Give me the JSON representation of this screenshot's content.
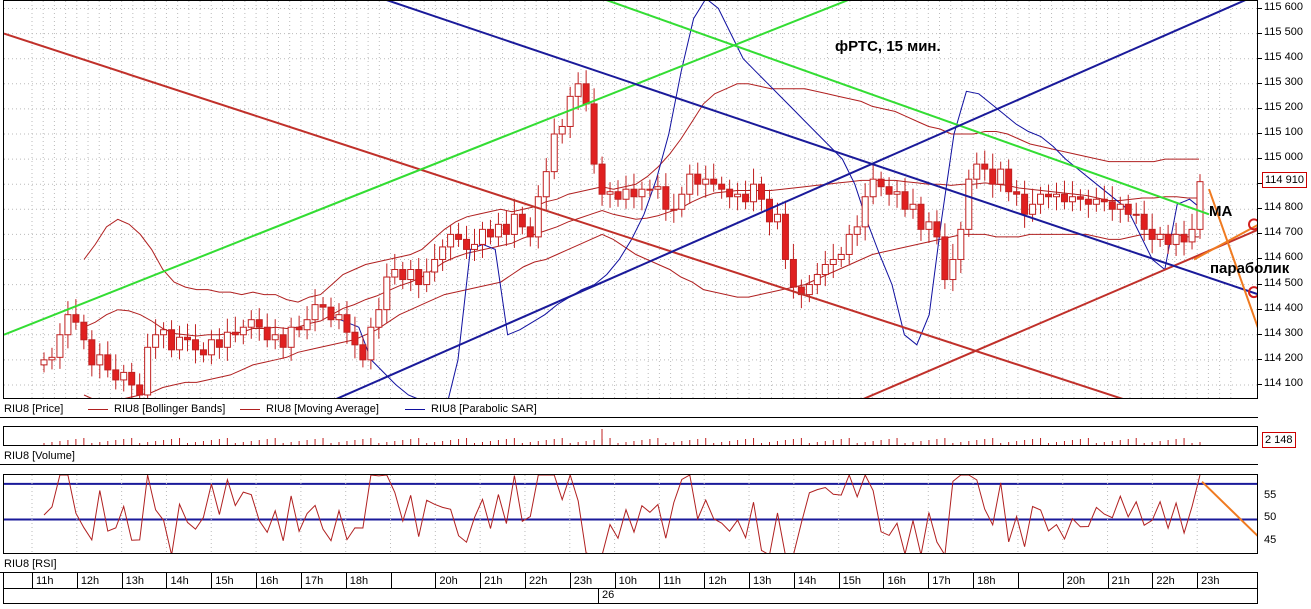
{
  "chart_data": [
    {
      "type": "candlestick",
      "title": "фРТС, 15 мин.",
      "symbol": "RIU8",
      "legend": [
        "RIU8 [Price]",
        "RIU8 [Bollinger Bands]",
        "RIU8 [Moving Average]",
        "RIU8 [Parabolic SAR]"
      ],
      "y_ticks": [
        115600,
        115500,
        115400,
        115300,
        115200,
        115100,
        115000,
        114900,
        114800,
        114700,
        114600,
        114500,
        114400,
        114300,
        114200,
        114100
      ],
      "y_tick_labels": [
        "115 600",
        "115 500",
        "115 400",
        "115 300",
        "115 200",
        "115 100",
        "115 000",
        "114 900",
        "114 800",
        "114 700",
        "114 600",
        "114 500",
        "114 400",
        "114 300",
        "114 200",
        "114 100"
      ],
      "ylim": [
        114040,
        115630
      ],
      "last_price_label": "114 910",
      "annotations": [
        "MA",
        "параболик"
      ],
      "candles_close": [
        114200,
        114210,
        114300,
        114380,
        114350,
        114280,
        114180,
        114220,
        114160,
        114120,
        114150,
        114100,
        114060,
        114250,
        114300,
        114320,
        114240,
        114290,
        114280,
        114240,
        114220,
        114280,
        114250,
        114310,
        114300,
        114330,
        114360,
        114330,
        114280,
        114300,
        114250,
        114330,
        114320,
        114360,
        114420,
        114410,
        114360,
        114380,
        114310,
        114260,
        114200,
        114330,
        114400,
        114530,
        114560,
        114520,
        114560,
        114500,
        114550,
        114600,
        114650,
        114700,
        114680,
        114640,
        114660,
        114720,
        114690,
        114740,
        114700,
        114780,
        114730,
        114690,
        114850,
        114950,
        115100,
        115130,
        115250,
        115300,
        115220,
        114980,
        114860,
        114870,
        114840,
        114880,
        114850,
        114880,
        114880,
        114890,
        114800,
        114800,
        114860,
        114940,
        114900,
        114920,
        114900,
        114880,
        114850,
        114860,
        114830,
        114900,
        114840,
        114750,
        114780,
        114600,
        114490,
        114460,
        114500,
        114540,
        114580,
        114600,
        114620,
        114700,
        114730,
        114850,
        114920,
        114890,
        114860,
        114870,
        114800,
        114820,
        114720,
        114750,
        114690,
        114520,
        114600,
        114720,
        114920,
        114980,
        114960,
        114900,
        114960,
        114870,
        114860,
        114780,
        114820,
        114860,
        114850,
        114860,
        114830,
        114850,
        114840,
        114820,
        114840,
        114830,
        114800,
        114820,
        114780,
        114780,
        114720,
        114680,
        114700,
        114660,
        114700,
        114670,
        114720,
        114910
      ],
      "bb_upper": [
        114600,
        114660,
        114730,
        114760,
        114740,
        114700,
        114640,
        114560,
        114510,
        114490,
        114480,
        114480,
        114470,
        114470,
        114460,
        114470,
        114460,
        114460,
        114440,
        114430,
        114450,
        114460,
        114500,
        114540,
        114560,
        114580,
        114590,
        114600,
        114610,
        114620,
        114640,
        114680,
        114720,
        114750,
        114770,
        114780,
        114790,
        114800,
        114790,
        114800,
        114810,
        114830,
        114840,
        114860,
        114870,
        114880,
        114890,
        114880,
        114890,
        114900,
        114930,
        114970,
        115020,
        115080,
        115150,
        115220,
        115260,
        115280,
        115300,
        115300,
        115290,
        115280,
        115280,
        115280,
        115280,
        115270,
        115260,
        115250,
        115240,
        115230,
        115210,
        115200,
        115190,
        115170,
        115150,
        115130,
        115120,
        115100,
        115100,
        115100,
        115110,
        115110,
        115100,
        115080,
        115060,
        115050,
        115040,
        115030,
        115020,
        115010,
        115000,
        114990,
        114990,
        114990,
        114990,
        114990,
        115000,
        115000,
        115000,
        115000
      ],
      "bb_lower": [
        114060,
        114040,
        114030,
        114040,
        114050,
        114060,
        114070,
        114090,
        114100,
        114110,
        114110,
        114120,
        114130,
        114140,
        114160,
        114180,
        114190,
        114200,
        114210,
        114230,
        114240,
        114250,
        114260,
        114270,
        114280,
        114300,
        114320,
        114350,
        114380,
        114400,
        114420,
        114440,
        114460,
        114470,
        114480,
        114490,
        114500,
        114510,
        114540,
        114570,
        114590,
        114600,
        114620,
        114640,
        114660,
        114680,
        114700,
        114680,
        114650,
        114620,
        114600,
        114580,
        114560,
        114530,
        114510,
        114480,
        114470,
        114460,
        114450,
        114450,
        114460,
        114470,
        114480,
        114490,
        114500,
        114520,
        114540,
        114560,
        114580,
        114600,
        114620,
        114630,
        114640,
        114650,
        114660,
        114670,
        114680,
        114690,
        114700,
        114700,
        114700,
        114690,
        114690,
        114690,
        114700,
        114700,
        114700,
        114700,
        114700,
        114700,
        114690,
        114680,
        114680,
        114690,
        114700,
        114700,
        114700,
        114700,
        114690,
        114690
      ],
      "sar": [
        114370,
        114350,
        114330,
        114200,
        114150,
        114100,
        114060,
        114040,
        114020,
        114000,
        114200,
        114640,
        114660,
        114640,
        114300,
        114320,
        114350,
        114380,
        114420,
        114450,
        114480,
        114500,
        114540,
        114600,
        114680,
        114780,
        114920,
        115100,
        115350,
        115560,
        115640,
        115600,
        115500,
        115400,
        115350,
        115300,
        115250,
        115200,
        115150,
        115100,
        115050,
        115000,
        114900,
        114750,
        114620,
        114500,
        114300,
        114260,
        114380,
        114760,
        115100,
        115270,
        115260,
        115220,
        115180,
        115140,
        115110,
        115090,
        115050,
        115000,
        114960,
        114920,
        114880,
        114840,
        114800,
        114700,
        114600,
        114560,
        114820,
        114840,
        114800
      ],
      "main_lines": [
        {
          "name": "red-channel-upper",
          "from": [
            "10h",
            115500
          ],
          "to": [
            "0h",
            114000
          ],
          "color": "#c0302a"
        },
        {
          "name": "red-channel-lower",
          "from": [
            "17h",
            114040
          ],
          "to": [
            "0h",
            114720
          ],
          "color": "#c0302a"
        },
        {
          "name": "green-support",
          "from": [
            "10h",
            114300
          ],
          "to": [
            "23h",
            115600
          ],
          "color": "#33dd33"
        },
        {
          "name": "green-resistance",
          "from": [
            "10h",
            115600
          ],
          "to": [
            "0h",
            114780
          ],
          "color": "#33dd33"
        },
        {
          "name": "blue-trend-up",
          "from": [
            "18h",
            114100
          ],
          "to": [
            "0h",
            115600
          ],
          "color": "#1a1a9a"
        },
        {
          "name": "blue-trend-down",
          "from": [
            "21h",
            115620
          ],
          "to": [
            "0h",
            114480
          ],
          "color": "#1a1a9a"
        }
      ]
    },
    {
      "type": "bar",
      "title": "RIU8 [Volume]",
      "last_value_label": "2 148"
    },
    {
      "type": "line",
      "title": "RIU8 [RSI]",
      "y_tick_labels": [
        "55",
        "50",
        "45"
      ],
      "levels": [
        58,
        50
      ],
      "ylim": [
        42,
        60
      ]
    }
  ],
  "time_axis": {
    "hours": [
      "11h",
      "12h",
      "13h",
      "14h",
      "15h",
      "16h",
      "17h",
      "18h",
      "",
      "20h",
      "21h",
      "22h",
      "23h",
      "10h",
      "11h",
      "12h",
      "13h",
      "14h",
      "15h",
      "16h",
      "17h",
      "18h",
      "",
      "20h",
      "21h",
      "22h",
      "23h"
    ],
    "day_label": "26"
  },
  "colors": {
    "candle_down": "#e02020",
    "candle_up": "#e02020",
    "bollinger": "#b02020",
    "moving_average": "#b02020",
    "sar": "#1010a0",
    "projection": "#f07a20"
  }
}
